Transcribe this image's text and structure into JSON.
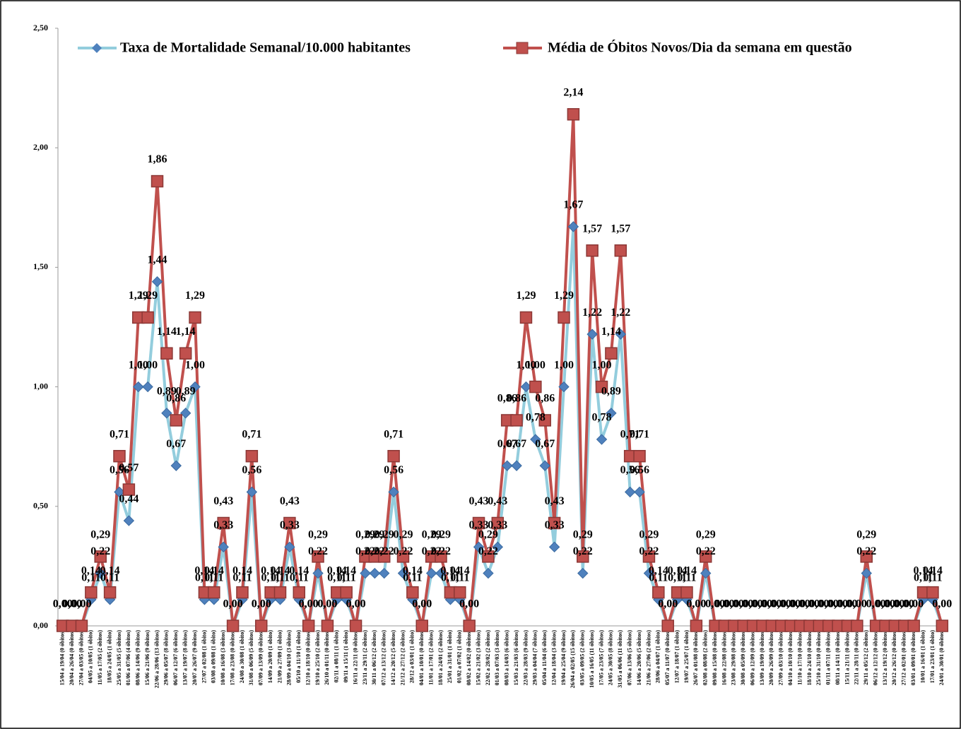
{
  "chart_data": {
    "type": "line",
    "categories": [
      "15/04 a 19/04 (0 óbitos)",
      "20/04 a 26/04 (0 óbitos)",
      "27/04 a 03/05 (0 óbitos)",
      "04/05 a 10/05 (1 óbito)",
      "11/05 a 17/05 (2 óbitos)",
      "18/05 a 24/05 (1 óbito)",
      "25/05 a 31/05 (5 óbitos)",
      "01/06 a 07/06 (4 óbitos)",
      "08/06 a 14/06 (9 óbitos)",
      "15/06 a 21/06 (9 óbitos)",
      "22/06 a 28/06 (13 óbitos)",
      "29/06 a 05/07 (8 óbitos)",
      "06/07 a 12/07 (6 óbitos)",
      "13/07 a 19/07 (8 óbitos)",
      "20/07 a 26/07 (9 óbitos)",
      "27/07 a 02/08 (1 óbito)",
      "03/08 a 09/08 (1 óbito)",
      "10/08 a 16/08 (3 óbitos)",
      "17/08 a 23/08 (0 óbitos)",
      "24/08 a 30/08 (1 óbito)",
      "31/08 a 06/09 (5 óbitos)",
      "07/09 a 13/09 (0 óbitos)",
      "14/09 a 20/09 (1 óbito)",
      "21/09 a 27/09 (1 óbito)",
      "28/09 a 04/10 (3 óbitos)",
      "05/10 a 11/10 (1 óbito)",
      "12/10 a 18/10 (0 óbitos)",
      "19/10 a 25/10 (2 óbitos)",
      "26/10 a 01/11 (0 óbitos)",
      "02/11 a 08/11 (1 óbito)",
      "09/11 a 15/11 (1 óbito)",
      "16/11 a 22/11 (0 óbitos)",
      "23/11 a 29/11 (2 óbitos)",
      "30/11 a 06/12 (2 óbitos)",
      "07/12 a 13/12 (2 óbitos)",
      "14/12 a 20/12 (5 óbitos)",
      "21/12 a 27/12 (2 óbitos)",
      "28/12 a 03/01 (1 óbito)",
      "04/01 a 10/01 (0 óbitos)",
      "11/01 a 17/01 (2 óbitos)",
      "18/01 a 24/01 (2 óbitos)",
      "25/01 a 31/01 (1 óbito)",
      "01/02 a 07/02 (1 óbito)",
      "08/02 a 14/02 (0 óbitos)",
      "15/02 a 21/02 (3 óbitos)",
      "22/02 a 28/02 (2 óbitos)",
      "01/03 a 07/03 (3 óbitos)",
      "08/03 a 14/03 (6 óbitos)",
      "15/03 a 21/03 (6 óbitos)",
      "22/03 a 28/03 (9 óbitos)",
      "29/03 a 04/04 (7 óbitos)",
      "05/04 a 11/04 (6 óbitos)",
      "12/04 a 18/04 (3 óbitos)",
      "19/04 a 25/04 (9 óbitos)",
      "26/04 a 02/05 (15 óbitos)",
      "03/05 a 09/05 (2 óbitos)",
      "10/05 a 16/05 (11 óbitos)",
      "17/05 a 23/05 (7 óbitos)",
      "24/05 a 30/05 (8 óbitos)",
      "31/05 a 06/06 (11 óbitos)",
      "07/06 a 13/06 (5 óbitos)",
      "14/06 a 20/06 (5 óbitos)",
      "21/06 a 27/06 (2 óbitos)",
      "28/06 a 04/07 (1 óbito)",
      "05/07 a 11/07 (0 óbitos)",
      "12/07 a 18/07 (1 óbito)",
      "19/07 a 25/07 (1 óbito)",
      "26/07 a 01/08 (0 óbitos)",
      "02/08 a 08/08 (2 óbitos)",
      "09/08 a 15/08 (0 óbitos)",
      "16/08 a 22/08 (0 óbitos)",
      "23/08 a 29/08 (0 óbitos)",
      "30/08 a 05/09 (0 óbitos)",
      "06/09 a 12/09 (0 óbitos)",
      "13/09 a 19/09 (0 óbitos)",
      "20/09 a 26/09 (0 óbitos)",
      "27/09 a 03/10 (0 óbitos)",
      "04/10 a 10/10 (0 óbitos)",
      "11/10 a 17/10 (0 óbitos)",
      "18/10 a 24/10 (0 óbitos)",
      "25/10 a 31/10 (0 óbitos)",
      "01/11 a 07/11 (0 óbitos)",
      "08/11 a 14/11 (0 óbitos)",
      "15/11 a 21/11 (0 óbitos)",
      "22/11 a 28/11 (0 óbitos)",
      "29/11 a 05/12 (2 óbitos)",
      "06/12 a 12/12 (0 óbitos)",
      "13/12 a 19/12 (0 óbitos)",
      "20/12 a 26/12 (0 óbitos)",
      "27/12 a 02/01 (0 óbitos)",
      "03/01 a 09/01 (0 óbitos)",
      "10/01 a 16/01 (1 óbito)",
      "17/01 a 23/01 (1 óbito)",
      "24/01 a 30/01 (0 óbitos)"
    ],
    "series": [
      {
        "name": "Taxa de Mortalidade Semanal/10.000 habitantes",
        "color": "#93cddd",
        "marker_color": "#4f81bd",
        "marker": "diamond",
        "values": [
          0,
          0,
          0,
          0.11,
          0.22,
          0.11,
          0.56,
          0.44,
          1.0,
          1.0,
          1.44,
          0.89,
          0.67,
          0.89,
          1.0,
          0.11,
          0.11,
          0.33,
          0,
          0.11,
          0.56,
          0,
          0.11,
          0.11,
          0.33,
          0.11,
          0,
          0.22,
          0,
          0.11,
          0.11,
          0,
          0.22,
          0.22,
          0.22,
          0.56,
          0.22,
          0.11,
          0,
          0.22,
          0.22,
          0.11,
          0.11,
          0,
          0.33,
          0.22,
          0.33,
          0.67,
          0.67,
          1.0,
          0.78,
          0.67,
          0.33,
          1.0,
          1.67,
          0.22,
          1.22,
          0.78,
          0.89,
          1.22,
          0.56,
          0.56,
          0.22,
          0.11,
          0,
          0.11,
          0.11,
          0,
          0.22,
          0,
          0,
          0,
          0,
          0,
          0,
          0,
          0,
          0,
          0,
          0,
          0,
          0,
          0,
          0,
          0,
          0.22,
          0,
          0,
          0,
          0,
          0,
          0.11,
          0.11,
          0
        ],
        "value_labels": [
          "0,00",
          "0,00",
          "0,00",
          "0,11",
          "0,22",
          "0,11",
          "0,56",
          "0,44",
          "1,00",
          "1,00",
          "1,44",
          "0,89",
          "0,67",
          "0,89",
          "1,00",
          "0,11",
          "0,11",
          "0,33",
          "0,00",
          "0,11",
          "0,56",
          "0,00",
          "0,11",
          "0,11",
          "0,33",
          "0,11",
          "0,00",
          "0,22",
          "0,00",
          "0,11",
          "0,11",
          "0,00",
          "0,22",
          "0,22",
          "0,22",
          "0,56",
          "0,22",
          "0,11",
          "0,00",
          "0,22",
          "0,22",
          "0,11",
          "0,11",
          "0,00",
          "0,33",
          "0,22",
          "0,33",
          "0,67",
          "0,67",
          "1,00",
          "0,78",
          "0,67",
          "0,33",
          "1,00",
          "1,67",
          "0,22",
          "1,22",
          "0,78",
          "0,89",
          "1,22",
          "0,56",
          "0,56",
          "0,22",
          "0,11",
          "0,00",
          "0,11",
          "0,11",
          "0,00",
          "0,22",
          "0,00",
          "0,00",
          "0,00",
          "0,00",
          "0,00",
          "0,00",
          "0,00",
          "0,00",
          "0,00",
          "0,00",
          "0,00",
          "0,00",
          "0,00",
          "0,00",
          "0,00",
          "0,00",
          "0,22",
          "0,00",
          "0,00",
          "0,00",
          "0,00",
          "0,00",
          "0,11",
          "0,11",
          "0,00"
        ]
      },
      {
        "name": "Média de Óbitos Novos/Dia da semana em questão",
        "color": "#c0504d",
        "marker_color": "#c0504d",
        "marker": "square",
        "values": [
          0,
          0,
          0,
          0.14,
          0.29,
          0.14,
          0.71,
          0.57,
          1.29,
          1.29,
          1.86,
          1.14,
          0.86,
          1.14,
          1.29,
          0.14,
          0.14,
          0.43,
          0,
          0.14,
          0.71,
          0,
          0.14,
          0.14,
          0.43,
          0.14,
          0,
          0.29,
          0,
          0.14,
          0.14,
          0,
          0.29,
          0.29,
          0.29,
          0.71,
          0.29,
          0.14,
          0,
          0.29,
          0.29,
          0.14,
          0.14,
          0,
          0.43,
          0.29,
          0.43,
          0.86,
          0.86,
          1.29,
          1.0,
          0.86,
          0.43,
          1.29,
          2.14,
          0.29,
          1.57,
          1.0,
          1.14,
          1.57,
          0.71,
          0.71,
          0.29,
          0.14,
          0,
          0.14,
          0.14,
          0,
          0.29,
          0,
          0,
          0,
          0,
          0,
          0,
          0,
          0,
          0,
          0,
          0,
          0,
          0,
          0,
          0,
          0,
          0.29,
          0,
          0,
          0,
          0,
          0,
          0.14,
          0.14,
          0
        ],
        "value_labels": [
          "0,00",
          "0,00",
          "0,00",
          "0,14",
          "0,29",
          "0,14",
          "0,71",
          "0,57",
          "1,29",
          "1,29",
          "1,86",
          "1,14",
          "0,86",
          "1,14",
          "1,29",
          "0,14",
          "0,14",
          "0,43",
          "0,00",
          "0,14",
          "0,71",
          "0,00",
          "0,14",
          "0,14",
          "0,43",
          "0,14",
          "0,00",
          "0,29",
          "0,00",
          "0,14",
          "0,14",
          "0,00",
          "0,29",
          "0,29",
          "0,29",
          "0,71",
          "0,29",
          "0,14",
          "0,00",
          "0,29",
          "0,29",
          "0,14",
          "0,14",
          "0,00",
          "0,43",
          "0,29",
          "0,43",
          "0,86",
          "0,86",
          "1,29",
          "1,00",
          "0,86",
          "0,43",
          "1,29",
          "2,14",
          "0,29",
          "1,57",
          "1,00",
          "1,14",
          "1,57",
          "0,71",
          "0,71",
          "0,29",
          "0,14",
          "0,00",
          "0,14",
          "0,14",
          "0,00",
          "0,29",
          "0,00",
          "0,00",
          "0,00",
          "0,00",
          "0,00",
          "0,00",
          "0,00",
          "0,00",
          "0,00",
          "0,00",
          "0,00",
          "0,00",
          "0,00",
          "0,00",
          "0,00",
          "0,00",
          "0,29",
          "0,00",
          "0,00",
          "0,00",
          "0,00",
          "0,00",
          "0,14",
          "0,14",
          "0,00"
        ]
      }
    ],
    "ylim": [
      0,
      2.5
    ],
    "yticks": [
      {
        "value": 0,
        "label": "0,00"
      },
      {
        "value": 0.5,
        "label": "0,50"
      },
      {
        "value": 1,
        "label": "1,00"
      },
      {
        "value": 1.5,
        "label": "1,50"
      },
      {
        "value": 2,
        "label": "2,00"
      },
      {
        "value": 2.5,
        "label": "2,50"
      }
    ],
    "legend": "top"
  }
}
